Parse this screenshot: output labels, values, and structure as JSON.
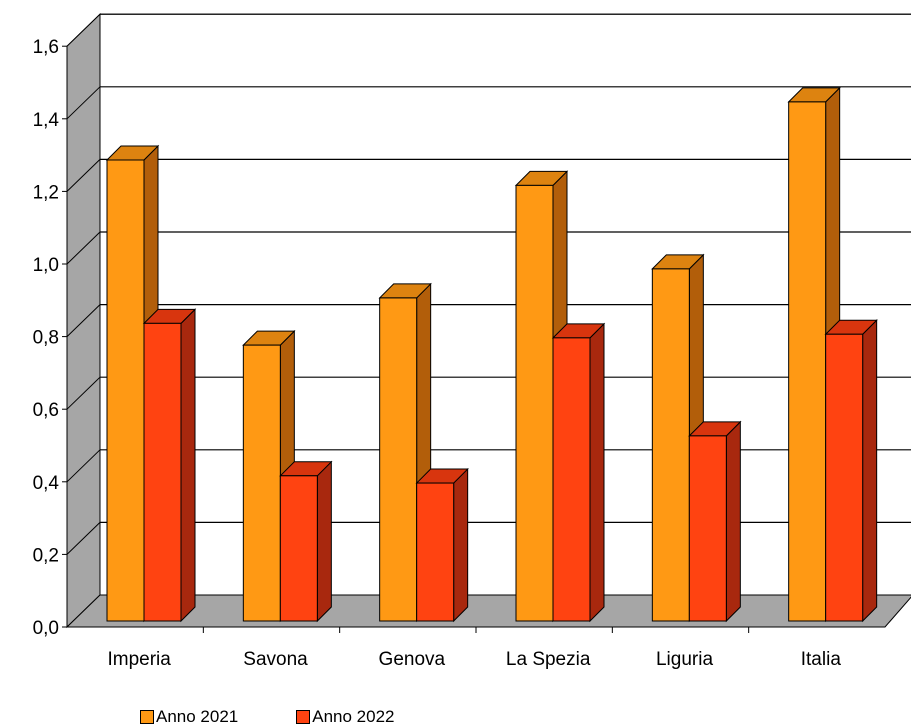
{
  "chart_data": {
    "type": "bar",
    "categories": [
      "Imperia",
      "Savona",
      "Genova",
      "La Spezia",
      "Liguria",
      "Italia"
    ],
    "series": [
      {
        "name": "Anno 2021",
        "values": [
          1.27,
          0.76,
          0.89,
          1.2,
          0.97,
          1.43
        ],
        "color": "#FF9914",
        "side_color": "#B25E0A",
        "top_color": "#DD8310"
      },
      {
        "name": "Anno 2022",
        "values": [
          0.82,
          0.4,
          0.38,
          0.78,
          0.51,
          0.79
        ],
        "color": "#FF4311",
        "side_color": "#A8280E",
        "top_color": "#D8350E"
      }
    ],
    "ylim": [
      0,
      1.6
    ],
    "yticks": [
      "0,0",
      "0,2",
      "0,4",
      "0,6",
      "0,8",
      "1,0",
      "1,2",
      "1,4",
      "1,6"
    ],
    "grid": true,
    "legend_position": "bottom",
    "colors": {
      "back_wall": "#FFFFFF",
      "side_wall": "#A6A6A6",
      "floor": "#A6A6A6"
    }
  }
}
